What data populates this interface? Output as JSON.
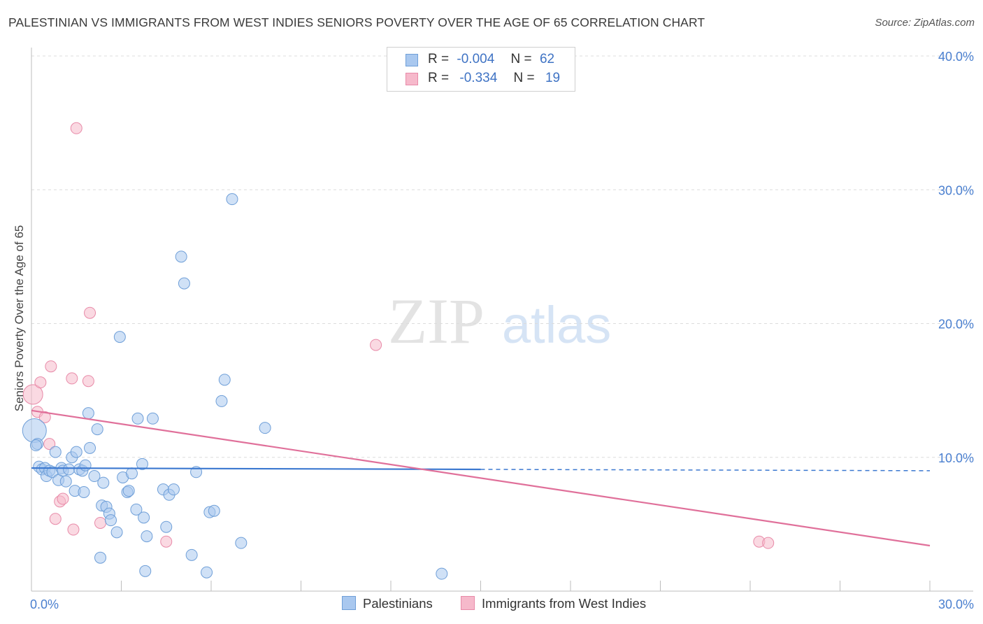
{
  "title": "PALESTINIAN VS IMMIGRANTS FROM WEST INDIES SENIORS POVERTY OVER THE AGE OF 65 CORRELATION CHART",
  "source": "Source: ZipAtlas.com",
  "watermark": {
    "zip": "ZIP",
    "atlas": "atlas"
  },
  "legend": {
    "rows": [
      {
        "r_label": "R =",
        "r_value": "-0.004",
        "n_label": "N =",
        "n_value": "62"
      },
      {
        "r_label": "R =",
        "r_value": "-0.334",
        "n_label": "N =",
        "n_value": "19"
      }
    ]
  },
  "bottom_legend": {
    "series1": "Palestinians",
    "series2": "Immigrants from West Indies"
  },
  "colors": {
    "blue_fill": "#a9c8ef",
    "blue_stroke": "#6f9fd8",
    "blue_line": "#3b78d0",
    "pink_fill": "#f6b9cb",
    "pink_stroke": "#e88aa8",
    "pink_line": "#e0709a",
    "tick_text": "#4a7fcf"
  },
  "chart_data": {
    "type": "scatter",
    "title": "PALESTINIAN VS IMMIGRANTS FROM WEST INDIES SENIORS POVERTY OVER THE AGE OF 65 CORRELATION CHART",
    "xlabel": "",
    "ylabel": "Seniors Poverty Over the Age of 65",
    "xlim": [
      0,
      30
    ],
    "ylim": [
      0,
      40
    ],
    "x_tick_labels": [
      {
        "value": 0,
        "label": "0.0%"
      },
      {
        "value": 30,
        "label": "30.0%"
      }
    ],
    "x_tick_marks": [
      0,
      3,
      6,
      9,
      12,
      15,
      18,
      21,
      24,
      27,
      30
    ],
    "y_ticks": [
      {
        "value": 10,
        "label": "10.0%"
      },
      {
        "value": 20,
        "label": "20.0%"
      },
      {
        "value": 30,
        "label": "30.0%"
      },
      {
        "value": 40,
        "label": "40.0%"
      }
    ],
    "grid": "horizontal dashed",
    "series": [
      {
        "name": "Palestinians",
        "color": "#a9c8ef",
        "R": -0.004,
        "N": 62,
        "trend": {
          "x0": 0,
          "y0": 9.2,
          "x1": 15,
          "y1": 9.1,
          "dashed_to_x": 30,
          "dashed_y": 9.0
        },
        "points": [
          [
            0.1,
            12.0
          ],
          [
            0.2,
            11.0
          ],
          [
            0.25,
            9.3
          ],
          [
            0.35,
            9.1
          ],
          [
            0.45,
            9.2
          ],
          [
            0.5,
            8.6
          ],
          [
            0.6,
            9.0
          ],
          [
            0.7,
            8.9
          ],
          [
            0.8,
            10.4
          ],
          [
            0.9,
            8.3
          ],
          [
            1.0,
            9.2
          ],
          [
            1.05,
            9.0
          ],
          [
            1.15,
            8.2
          ],
          [
            1.25,
            9.1
          ],
          [
            1.35,
            10.0
          ],
          [
            1.45,
            7.5
          ],
          [
            1.5,
            10.4
          ],
          [
            1.6,
            9.1
          ],
          [
            1.7,
            9.0
          ],
          [
            1.75,
            7.4
          ],
          [
            1.8,
            9.4
          ],
          [
            1.9,
            13.3
          ],
          [
            1.95,
            10.7
          ],
          [
            2.1,
            8.6
          ],
          [
            2.2,
            12.1
          ],
          [
            2.35,
            6.4
          ],
          [
            2.4,
            8.1
          ],
          [
            2.5,
            6.3
          ],
          [
            2.6,
            5.8
          ],
          [
            2.65,
            5.3
          ],
          [
            2.85,
            4.4
          ],
          [
            2.95,
            19.0
          ],
          [
            2.3,
            2.5
          ],
          [
            3.05,
            8.5
          ],
          [
            3.2,
            7.4
          ],
          [
            3.25,
            7.5
          ],
          [
            3.35,
            8.8
          ],
          [
            3.5,
            6.1
          ],
          [
            3.55,
            12.9
          ],
          [
            3.7,
            9.5
          ],
          [
            3.75,
            5.5
          ],
          [
            3.85,
            4.1
          ],
          [
            3.8,
            1.5
          ],
          [
            4.05,
            12.9
          ],
          [
            4.4,
            7.6
          ],
          [
            4.5,
            4.8
          ],
          [
            4.6,
            7.2
          ],
          [
            4.75,
            7.6
          ],
          [
            5.0,
            25.0
          ],
          [
            5.1,
            23.0
          ],
          [
            5.35,
            2.7
          ],
          [
            5.5,
            8.9
          ],
          [
            5.85,
            1.4
          ],
          [
            5.95,
            5.9
          ],
          [
            6.1,
            6.0
          ],
          [
            6.35,
            14.2
          ],
          [
            6.45,
            15.8
          ],
          [
            6.7,
            29.3
          ],
          [
            7.0,
            3.6
          ],
          [
            7.8,
            12.2
          ],
          [
            13.7,
            1.3
          ],
          [
            0.15,
            10.9
          ]
        ]
      },
      {
        "name": "Immigrants from West Indies",
        "color": "#f6b9cb",
        "R": -0.334,
        "N": 19,
        "trend": {
          "x0": 0,
          "y0": 13.5,
          "x1": 30,
          "y1": 3.4
        },
        "points": [
          [
            0.05,
            14.7
          ],
          [
            0.2,
            13.4
          ],
          [
            0.3,
            15.6
          ],
          [
            0.45,
            13.0
          ],
          [
            0.6,
            11.0
          ],
          [
            0.65,
            16.8
          ],
          [
            0.8,
            5.4
          ],
          [
            0.95,
            6.7
          ],
          [
            1.05,
            6.9
          ],
          [
            1.35,
            15.9
          ],
          [
            1.4,
            4.6
          ],
          [
            1.5,
            34.6
          ],
          [
            1.9,
            15.7
          ],
          [
            1.95,
            20.8
          ],
          [
            2.3,
            5.1
          ],
          [
            4.5,
            3.7
          ],
          [
            11.5,
            18.4
          ],
          [
            24.3,
            3.7
          ],
          [
            24.6,
            3.6
          ]
        ]
      }
    ]
  }
}
